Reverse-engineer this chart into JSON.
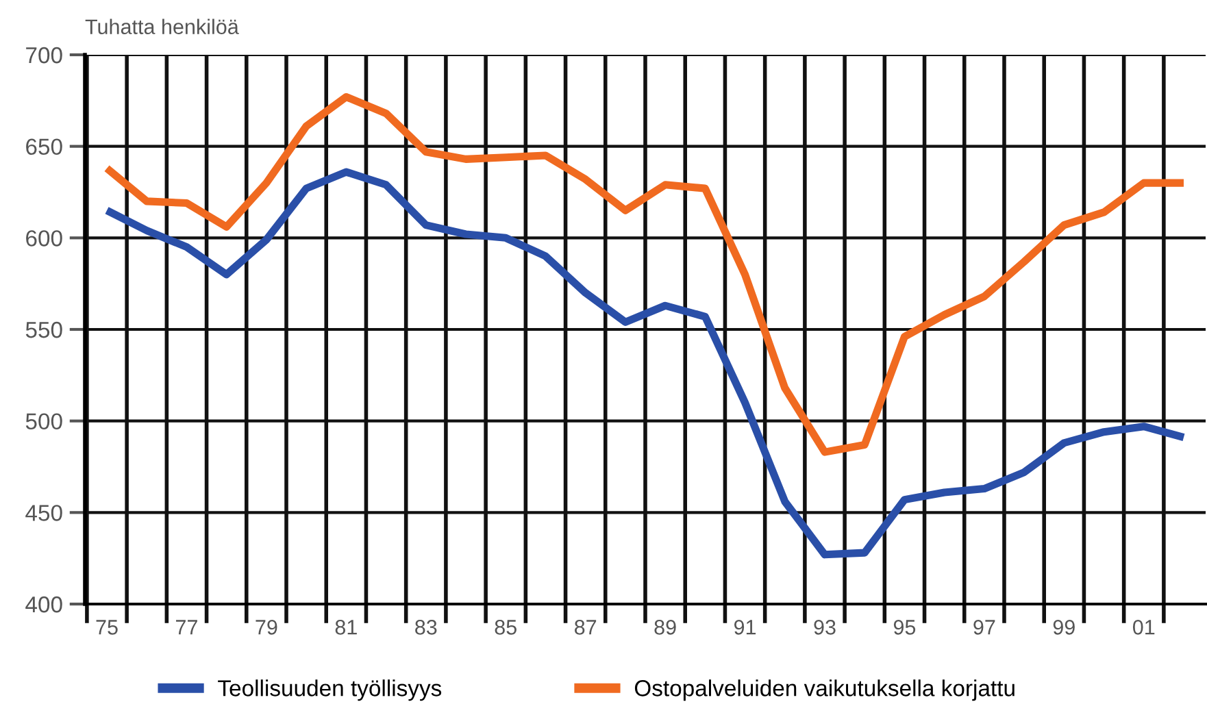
{
  "chart_data": {
    "type": "line",
    "ylabel": "Tuhatta henkilöä",
    "categories": [
      "75",
      null,
      "77",
      null,
      "79",
      null,
      "81",
      null,
      "83",
      null,
      "85",
      null,
      "87",
      null,
      "89",
      null,
      "91",
      null,
      "93",
      null,
      "95",
      null,
      "97",
      null,
      "99",
      null,
      "01",
      null
    ],
    "series": [
      {
        "name": "Teollisuuden työllisyys",
        "color": "#2a4fa8",
        "values": [
          615,
          604,
          595,
          580,
          599,
          627,
          636,
          629,
          607,
          602,
          600,
          590,
          570,
          554,
          563,
          557,
          510,
          456,
          427,
          428,
          457,
          461,
          463,
          472,
          488,
          494,
          497,
          491
        ]
      },
      {
        "name": "Ostopalveluiden vaikutuksella korjattu",
        "color": "#f06a20",
        "values": [
          638,
          620,
          619,
          606,
          630,
          661,
          677,
          668,
          647,
          643,
          644,
          645,
          632,
          615,
          629,
          627,
          580,
          518,
          483,
          487,
          546,
          558,
          568,
          587,
          607,
          614,
          630,
          630
        ]
      }
    ],
    "ylim": [
      400,
      700
    ],
    "yticks": [
      400,
      450,
      500,
      550,
      600,
      650,
      700
    ],
    "grid": true,
    "legend": "bottom",
    "marker": "none",
    "line_style": "solid"
  }
}
